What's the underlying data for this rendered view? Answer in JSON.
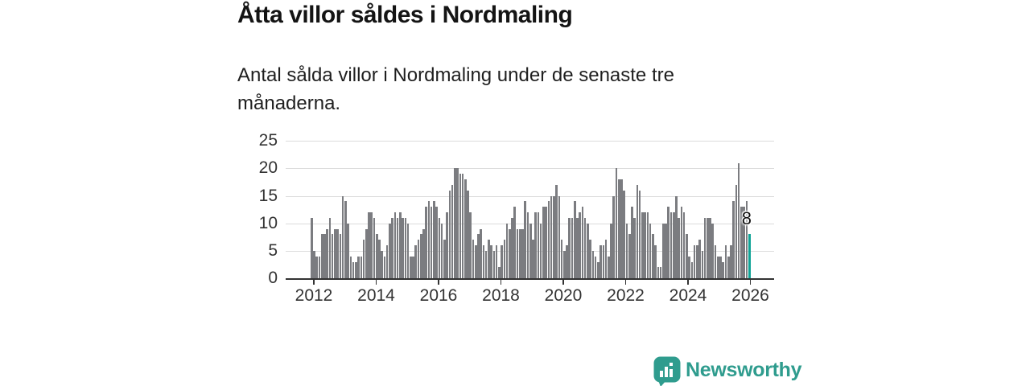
{
  "title": "Åtta villor såldes i Nordmaling",
  "subtitle": "Antal sålda villor i Nordmaling under de senaste tre månaderna.",
  "branding": {
    "name": "Newsworthy",
    "logo_icon": "chart-speech-bubble-icon",
    "brand_color": "#2f9c8e"
  },
  "colors": {
    "bar": "#7b7c80",
    "highlight": "#0fa396",
    "grid": "#dcdcdc",
    "axis": "#333333",
    "text": "#141414"
  },
  "chart_data": {
    "type": "bar",
    "title": "Åtta villor såldes i Nordmaling",
    "subtitle": "Antal sålda villor i Nordmaling under de senaste tre månaderna.",
    "xlabel": "",
    "ylabel": "",
    "ylim": [
      0,
      25
    ],
    "grid": "horizontal",
    "y_ticks": [
      0,
      5,
      10,
      15,
      20,
      25
    ],
    "x_ticks": [
      2012,
      2014,
      2016,
      2018,
      2020,
      2022,
      2024,
      2026
    ],
    "x_tick_labels": [
      "2012",
      "2014",
      "2016",
      "2018",
      "2020",
      "2022",
      "2024",
      "2026"
    ],
    "frequency": "monthly-rolling-3-month-sum",
    "x_start": "2011-12",
    "x_end": "2025-12",
    "highlight_last": true,
    "last_value_label": "8",
    "values": [
      11,
      5,
      4,
      4,
      8,
      8,
      9,
      11,
      8,
      9,
      9,
      8,
      15,
      14,
      10,
      4,
      3,
      3,
      4,
      4,
      7,
      9,
      12,
      12,
      11,
      8,
      7,
      5,
      4,
      6,
      10,
      11,
      12,
      11,
      12,
      11,
      11,
      10,
      4,
      4,
      6,
      7,
      8,
      9,
      13,
      14,
      13,
      14,
      13,
      11,
      10,
      7,
      12,
      16,
      17,
      20,
      20,
      19,
      19,
      18,
      16,
      12,
      7,
      6,
      8,
      9,
      6,
      5,
      7,
      6,
      5,
      6,
      2,
      6,
      7,
      10,
      9,
      11,
      13,
      9,
      9,
      9,
      14,
      12,
      10,
      7,
      12,
      12,
      10,
      13,
      13,
      14,
      15,
      15,
      17,
      15,
      7,
      5,
      6,
      11,
      11,
      14,
      11,
      12,
      13,
      11,
      10,
      7,
      5,
      4,
      3,
      6,
      6,
      7,
      4,
      10,
      15,
      20,
      18,
      18,
      16,
      10,
      8,
      13,
      11,
      17,
      16,
      12,
      12,
      12,
      10,
      8,
      6,
      2,
      2,
      10,
      10,
      13,
      12,
      12,
      15,
      11,
      13,
      12,
      8,
      4,
      3,
      6,
      6,
      7,
      5,
      11,
      11,
      11,
      10,
      6,
      4,
      4,
      3,
      6,
      4,
      6,
      14,
      17,
      21,
      13,
      13,
      14,
      8
    ]
  }
}
